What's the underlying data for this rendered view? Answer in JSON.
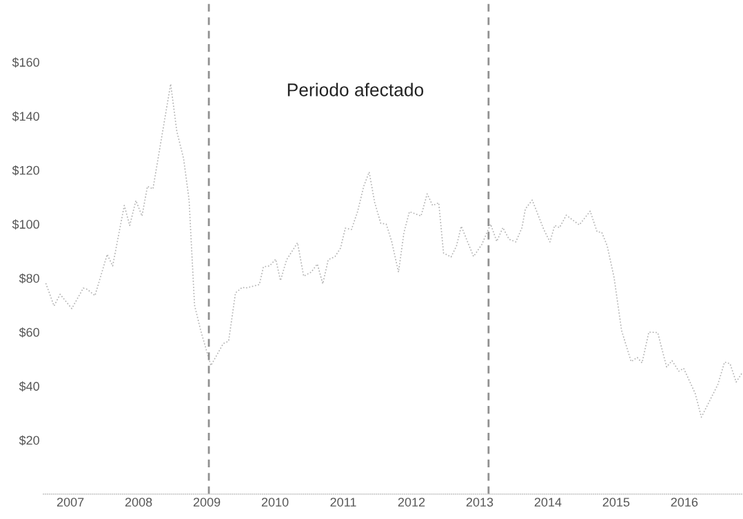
{
  "chart_data": {
    "type": "line",
    "x": [
      2006.64,
      2006.76,
      2006.85,
      2007.02,
      2007.19,
      2007.25,
      2007.36,
      2007.54,
      2007.62,
      2007.79,
      2007.87,
      2007.96,
      2008.05,
      2008.13,
      2008.21,
      2008.47,
      2008.56,
      2008.66,
      2008.74,
      2008.82,
      2008.91,
      2009.06,
      2009.24,
      2009.32,
      2009.42,
      2009.52,
      2009.57,
      2009.77,
      2009.83,
      2009.92,
      2010.01,
      2010.08,
      2010.17,
      2010.33,
      2010.42,
      2010.53,
      2010.62,
      2010.7,
      2010.78,
      2010.88,
      2010.96,
      2011.03,
      2011.12,
      2011.21,
      2011.3,
      2011.38,
      2011.46,
      2011.55,
      2011.63,
      2011.71,
      2011.81,
      2011.89,
      2011.97,
      2012.14,
      2012.23,
      2012.31,
      2012.4,
      2012.47,
      2012.58,
      2012.66,
      2012.73,
      2012.91,
      2013.03,
      2013.16,
      2013.25,
      2013.34,
      2013.43,
      2013.53,
      2013.62,
      2013.67,
      2013.77,
      2013.94,
      2014.03,
      2014.1,
      2014.17,
      2014.27,
      2014.46,
      2014.62,
      2014.72,
      2014.79,
      2014.87,
      2014.97,
      2015.08,
      2015.22,
      2015.31,
      2015.38,
      2015.48,
      2015.61,
      2015.74,
      2015.82,
      2015.92,
      2015.99,
      2016.16,
      2016.25,
      2016.49,
      2016.59,
      2016.67,
      2016.76,
      2016.85
    ],
    "series": [
      {
        "color": "#b0b0b0",
        "values": [
          78.1,
          69.7,
          74,
          68.7,
          76.3,
          75.8,
          73.5,
          88.8,
          84.5,
          106.9,
          99.5,
          108.7,
          103,
          114,
          113,
          151.9,
          134.4,
          124.2,
          108.9,
          70,
          60.6,
          47.6,
          55.7,
          56.7,
          74.5,
          76.6,
          76.3,
          77.6,
          84.2,
          84.5,
          87,
          79.1,
          86.8,
          93.1,
          80.7,
          82.2,
          85.2,
          77.9,
          86.8,
          88,
          91.1,
          98.5,
          98,
          104.6,
          114,
          119.3,
          108.1,
          100.3,
          100,
          93.6,
          82.2,
          96.9,
          104.6,
          103,
          111.2,
          106.9,
          107.9,
          89.3,
          87.8,
          91.9,
          99.2,
          88,
          92.4,
          100,
          93.6,
          98.7,
          94.4,
          93.4,
          98.7,
          105.6,
          108.9,
          98,
          93.4,
          99.5,
          98.7,
          103.3,
          99.7,
          104.8,
          97.2,
          96.9,
          91.9,
          80.2,
          60.6,
          49.1,
          50.6,
          48.6,
          60,
          59.8,
          47.1,
          49.4,
          45.5,
          46.6,
          37.2,
          28.5,
          40.5,
          48.9,
          48.3,
          41.5,
          45
        ]
      }
    ],
    "xlim": [
      2006.6,
      2016.86
    ],
    "ylim": [
      0,
      183
    ],
    "xticks": [
      2007,
      2008,
      2009,
      2010,
      2011,
      2012,
      2013,
      2014,
      2015,
      2016
    ],
    "yticks": [
      {
        "value": 20,
        "label": "$20"
      },
      {
        "value": 40,
        "label": "$40"
      },
      {
        "value": 60,
        "label": "$60"
      },
      {
        "value": 80,
        "label": "$80"
      },
      {
        "value": 100,
        "label": "$100"
      },
      {
        "value": 120,
        "label": "$120"
      },
      {
        "value": 140,
        "label": "$140"
      },
      {
        "value": 160,
        "label": "$160"
      }
    ],
    "ref_lines": [
      {
        "axis": "x",
        "value": 2009.03,
        "color": "#909090",
        "line_style": "dashed"
      },
      {
        "axis": "x",
        "value": 2013.13,
        "color": "#909090",
        "line_style": "dashed"
      }
    ],
    "annotations": [
      "Periodo afectado"
    ],
    "grid": false,
    "marker": "none",
    "line_style": "dotted"
  }
}
